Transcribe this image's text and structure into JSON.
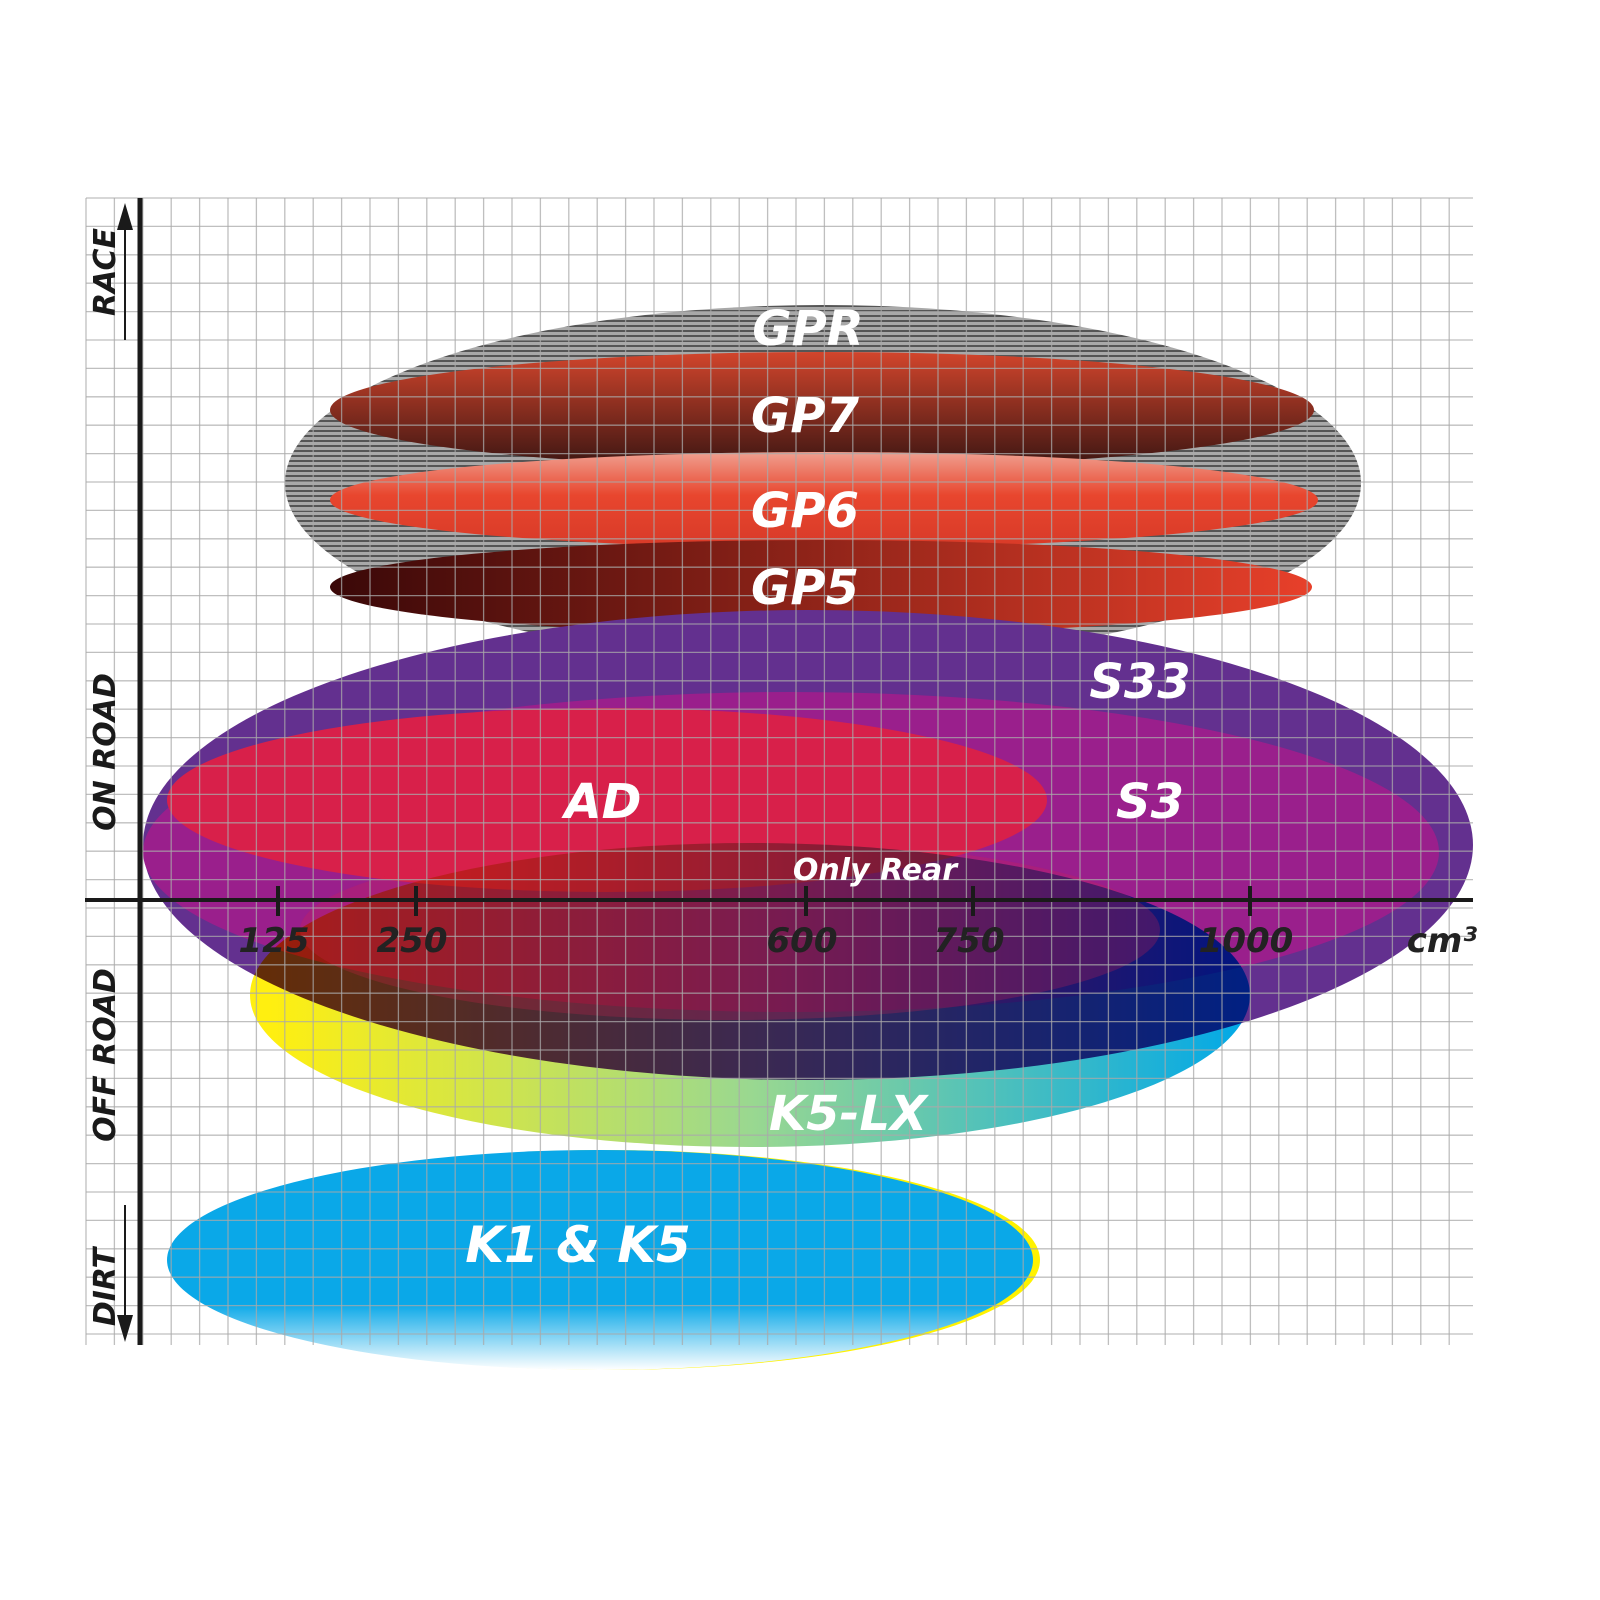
{
  "chart_data": {
    "type": "positioning",
    "x_axis": {
      "unit": "cm³",
      "ticks": [
        "125",
        "250",
        "600",
        "750",
        "1000"
      ]
    },
    "y_axis": {
      "labels": [
        "RACE",
        "ON ROAD",
        "OFF ROAD",
        "DIRT"
      ]
    },
    "products": [
      {
        "name": "GPR",
        "color": "#9a9a9a"
      },
      {
        "name": "GP7",
        "color": "#b8442e"
      },
      {
        "name": "GP6",
        "color": "#e8462e"
      },
      {
        "name": "GP5",
        "color": "#b01a1a"
      },
      {
        "name": "S33",
        "color": "#63308f"
      },
      {
        "name": "S3",
        "color": "#9a1f8c"
      },
      {
        "name": "AD",
        "color": "#d8204a"
      },
      {
        "name": "Only Rear",
        "color": "#c0203a"
      },
      {
        "name": "K5-LX",
        "color": "#20b8d8"
      },
      {
        "name": "K1 & K5",
        "color": "#0aa8e8"
      }
    ]
  }
}
